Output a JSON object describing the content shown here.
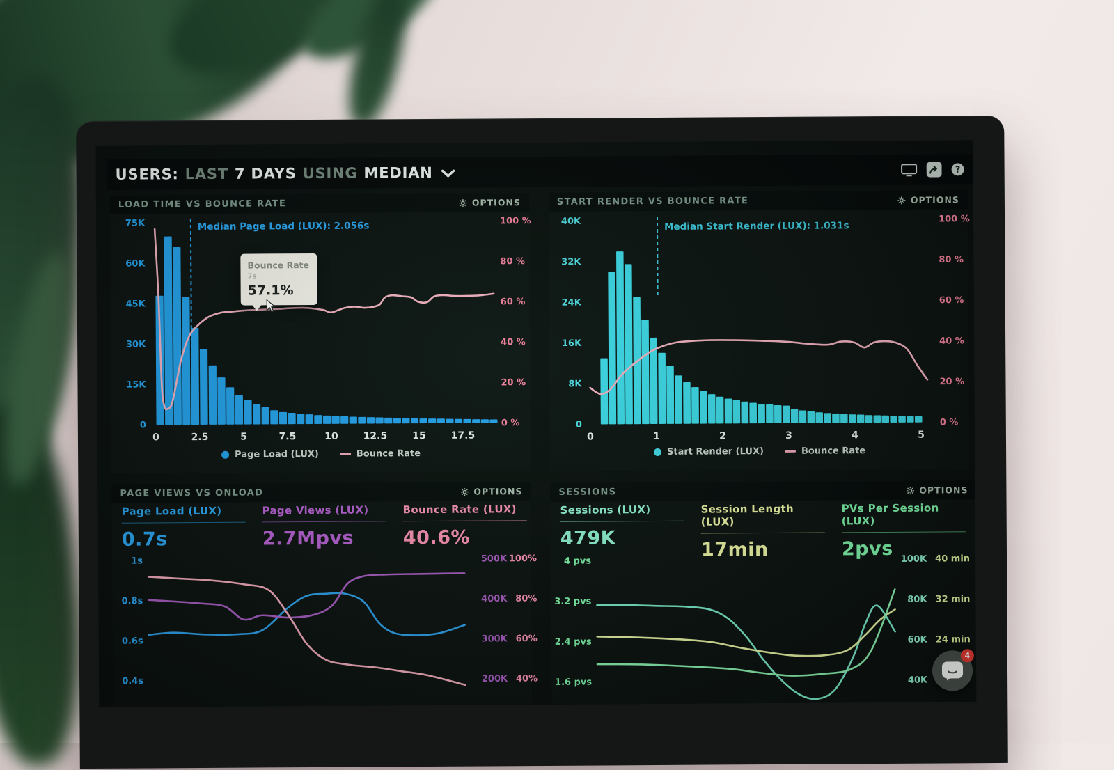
{
  "window": {
    "header_title_parts": [
      {
        "text": "USERS:",
        "dim": false
      },
      {
        "text": "LAST",
        "dim": true
      },
      {
        "text": "7 DAYS",
        "dim": false
      },
      {
        "text": "USING",
        "dim": true
      },
      {
        "text": "MEDIAN",
        "dim": false
      }
    ],
    "toolbar_icons": [
      "display-icon",
      "share-icon",
      "help-icon"
    ]
  },
  "chat_widget": {
    "badge_count": "4"
  },
  "panels": [
    {
      "title": "LOAD TIME VS BOUNCE RATE",
      "options_label": "OPTIONS",
      "legend": [
        {
          "marker": "dot",
          "color": "#249fe8",
          "label": "Page Load (LUX)"
        },
        {
          "marker": "line",
          "color": "#f0a6b8",
          "label": "Bounce Rate"
        }
      ]
    },
    {
      "title": "START RENDER VS BOUNCE RATE",
      "options_label": "OPTIONS",
      "legend": [
        {
          "marker": "dot",
          "color": "#41d6e3",
          "label": "Start Render (LUX)"
        },
        {
          "marker": "line",
          "color": "#f0a6b8",
          "label": "Bounce Rate"
        }
      ]
    },
    {
      "title": "PAGE VIEWS VS ONLOAD",
      "options_label": "OPTIONS",
      "metrics": [
        {
          "label": "Page Load (LUX)",
          "value": "0.7s",
          "color": "#2ba4ef"
        },
        {
          "label": "Page Views (LUX)",
          "value": "2.7Mpvs",
          "color": "#b55fd0"
        },
        {
          "label": "Bounce Rate (LUX)",
          "value": "40.6%",
          "color": "#f78fb0"
        }
      ]
    },
    {
      "title": "SESSIONS",
      "options_label": "OPTIONS",
      "metrics": [
        {
          "label": "Sessions (LUX)",
          "value": "479K",
          "color": "#8fefd0"
        },
        {
          "label": "Session Length (LUX)",
          "value": "17min",
          "color": "#edf4a4"
        },
        {
          "label": "PVs Per Session (LUX)",
          "value": "2pvs",
          "color": "#7ef2a8"
        }
      ]
    }
  ],
  "chart_data": [
    {
      "type": "bar",
      "title": "LOAD TIME VS BOUNCE RATE",
      "x_unit": "seconds",
      "x_ticks": [
        "0",
        "2.5",
        "5",
        "7.5",
        "10",
        "12.5",
        "15",
        "17.5"
      ],
      "x_tick_values": [
        0,
        2.5,
        5,
        7.5,
        10,
        12.5,
        15,
        17.5
      ],
      "x_max": 19.6,
      "left_axis": {
        "labels": [
          "75K",
          "60K",
          "45K",
          "30K",
          "15K",
          "0"
        ],
        "values": [
          75,
          60,
          45,
          30,
          15,
          0
        ],
        "max": 75,
        "color": "#249fe8"
      },
      "right_axis": {
        "labels": [
          "100 %",
          "80 %",
          "60 %",
          "40 %",
          "20 %",
          "0 %"
        ],
        "values": [
          100,
          80,
          60,
          40,
          20,
          0
        ],
        "max": 100,
        "color": "#f27f9b"
      },
      "bar_series": {
        "name": "Page Load (LUX)",
        "color": "#249fe8",
        "bar_start": 0,
        "bar_width": 0.5,
        "values_k": [
          48,
          70,
          66,
          47.5,
          36,
          28,
          22,
          17.5,
          13.8,
          10.8,
          9.1,
          7.5,
          6.3,
          5.2,
          4.5,
          4.2,
          3.9,
          3.6,
          3.3,
          3.1,
          2.9,
          2.8,
          2.6,
          2.5,
          2.4,
          2.3,
          2.2,
          2.1,
          2.0,
          1.9,
          1.8,
          1.75,
          1.7,
          1.6,
          1.55,
          1.5,
          1.4,
          1.35,
          1.3
        ]
      },
      "line_series": {
        "name": "Bounce Rate",
        "color": "#f2afbe",
        "points": [
          [
            0,
            97
          ],
          [
            0.2,
            62
          ],
          [
            0.35,
            20
          ],
          [
            0.5,
            9
          ],
          [
            0.7,
            8
          ],
          [
            0.9,
            10
          ],
          [
            1.1,
            17
          ],
          [
            1.4,
            30
          ],
          [
            1.7,
            39
          ],
          [
            2.0,
            45
          ],
          [
            2.4,
            49
          ],
          [
            2.8,
            52
          ],
          [
            3.2,
            54
          ],
          [
            3.8,
            55.5
          ],
          [
            4.5,
            56
          ],
          [
            5.2,
            56.5
          ],
          [
            6.0,
            56.8
          ],
          [
            7.0,
            57.1
          ],
          [
            7.6,
            57.4
          ],
          [
            8.4,
            57.6
          ],
          [
            9.0,
            57.2
          ],
          [
            9.6,
            56.4
          ],
          [
            10.0,
            55.2
          ],
          [
            10.4,
            56.2
          ],
          [
            10.8,
            57.4
          ],
          [
            11.4,
            58
          ],
          [
            11.9,
            57.4
          ],
          [
            12.4,
            57.8
          ],
          [
            12.8,
            59
          ],
          [
            13.1,
            62.5
          ],
          [
            13.5,
            63.5
          ],
          [
            14.1,
            63
          ],
          [
            14.6,
            62.4
          ],
          [
            15.0,
            60.2
          ],
          [
            15.5,
            60
          ],
          [
            15.9,
            62.8
          ],
          [
            16.4,
            63.4
          ],
          [
            17.1,
            63
          ],
          [
            17.8,
            63
          ],
          [
            18.5,
            63.2
          ],
          [
            19.3,
            64
          ]
        ]
      },
      "median": {
        "x": 2.056,
        "label": "Median Page Load (LUX): 2.056s",
        "color": "#2ba4ef"
      },
      "tooltip": {
        "series": "Bounce Rate",
        "x_label": "7s",
        "value": "57.1%"
      }
    },
    {
      "type": "bar",
      "title": "START RENDER VS BOUNCE RATE",
      "x_unit": "seconds",
      "x_ticks": [
        "0",
        "1",
        "2",
        "3",
        "4",
        "5"
      ],
      "x_tick_values": [
        0,
        1,
        2,
        3,
        4,
        5
      ],
      "x_max": 5.2,
      "left_axis": {
        "labels": [
          "40K",
          "32K",
          "24K",
          "16K",
          "8K",
          "0"
        ],
        "values": [
          40,
          32,
          24,
          16,
          8,
          0
        ],
        "max": 40,
        "color": "#4fd8df"
      },
      "right_axis": {
        "labels": [
          "100 %",
          "80 %",
          "60 %",
          "40 %",
          "20 %",
          "0 %"
        ],
        "values": [
          100,
          80,
          60,
          40,
          20,
          0
        ],
        "max": 100,
        "color": "#f27f9b"
      },
      "bar_series": {
        "name": "Start Render (LUX)",
        "color": "#3cd6e4",
        "bar_start": 0.15,
        "bar_width": 0.125,
        "values_k": [
          13,
          30,
          34,
          31.5,
          25,
          20.5,
          17,
          14,
          11.5,
          9.5,
          8.2,
          7.2,
          6.4,
          5.8,
          5.3,
          4.9,
          4.6,
          4.3,
          4.05,
          3.85,
          3.7,
          3.55,
          3.45,
          2.8,
          2.5,
          2.3,
          2.1,
          1.95,
          1.85,
          1.75,
          1.65,
          1.6,
          1.5,
          1.45,
          1.4,
          1.35,
          1.3,
          1.25,
          1.2
        ]
      },
      "line_series": {
        "name": "Bounce Rate",
        "color": "#f2afbe",
        "points": [
          [
            0,
            18
          ],
          [
            0.15,
            15
          ],
          [
            0.3,
            17
          ],
          [
            0.5,
            25
          ],
          [
            0.8,
            33
          ],
          [
            1.0,
            37
          ],
          [
            1.3,
            40
          ],
          [
            1.7,
            41
          ],
          [
            2.2,
            41
          ],
          [
            2.7,
            40.5
          ],
          [
            3.0,
            40
          ],
          [
            3.3,
            39
          ],
          [
            3.6,
            38.5
          ],
          [
            3.8,
            40
          ],
          [
            4.0,
            39.5
          ],
          [
            4.15,
            37
          ],
          [
            4.3,
            39.5
          ],
          [
            4.5,
            40
          ],
          [
            4.65,
            39
          ],
          [
            4.8,
            36
          ],
          [
            4.95,
            28
          ],
          [
            5.1,
            21
          ]
        ]
      },
      "median": {
        "x": 1.031,
        "label": "Median Start Render (LUX): 1.031s",
        "color": "#3ec9de"
      }
    },
    {
      "type": "line",
      "title": "PAGE VIEWS VS ONLOAD",
      "left_axis": {
        "labels": [
          "1s",
          "0.8s",
          "0.6s",
          "0.4s"
        ],
        "color": "#2ba4ef"
      },
      "right_axes": [
        {
          "labels": [
            "500K",
            "400K",
            "300K",
            "200K"
          ],
          "color": "#a75cc0"
        },
        {
          "labels": [
            "100%",
            "80%",
            "60%",
            "40%"
          ],
          "color": "#f78fb0"
        }
      ],
      "series": [
        {
          "name": "Page Load (LUX)",
          "unit": "s",
          "color": "#2f9fe8",
          "row_top_value": 1.0,
          "row_step": 0.2,
          "points": [
            [
              0,
              0.63
            ],
            [
              0.08,
              0.64
            ],
            [
              0.18,
              0.63
            ],
            [
              0.28,
              0.63
            ],
            [
              0.36,
              0.65
            ],
            [
              0.44,
              0.76
            ],
            [
              0.5,
              0.82
            ],
            [
              0.56,
              0.83
            ],
            [
              0.62,
              0.83
            ],
            [
              0.68,
              0.79
            ],
            [
              0.73,
              0.68
            ],
            [
              0.78,
              0.63
            ],
            [
              0.85,
              0.62
            ],
            [
              0.92,
              0.63
            ],
            [
              1,
              0.67
            ]
          ]
        },
        {
          "name": "Page Views (LUX)",
          "unit": "K pvs",
          "color": "#a75cc0",
          "row_top_value": 500,
          "row_step": 100,
          "points": [
            [
              0,
              402
            ],
            [
              0.08,
              398
            ],
            [
              0.16,
              393
            ],
            [
              0.24,
              385
            ],
            [
              0.3,
              352
            ],
            [
              0.36,
              362
            ],
            [
              0.44,
              356
            ],
            [
              0.52,
              362
            ],
            [
              0.58,
              385
            ],
            [
              0.63,
              440
            ],
            [
              0.68,
              458
            ],
            [
              0.75,
              462
            ],
            [
              0.85,
              463
            ],
            [
              1,
              464
            ]
          ]
        },
        {
          "name": "Bounce Rate (LUX)",
          "unit": "%",
          "color": "#f2a9bb",
          "row_top_value": 100,
          "row_step": 20,
          "points": [
            [
              0,
              92
            ],
            [
              0.1,
              91
            ],
            [
              0.2,
              90
            ],
            [
              0.3,
              88
            ],
            [
              0.38,
              85
            ],
            [
              0.44,
              73
            ],
            [
              0.5,
              58
            ],
            [
              0.56,
              50
            ],
            [
              0.63,
              47.5
            ],
            [
              0.72,
              46
            ],
            [
              0.8,
              44
            ],
            [
              0.88,
              42
            ],
            [
              1,
              37
            ]
          ]
        }
      ]
    },
    {
      "type": "line",
      "title": "SESSIONS",
      "left_axis": {
        "labels": [
          "4 pvs",
          "3.2 pvs",
          "2.4 pvs",
          "1.6 pvs"
        ],
        "color": "#7ef2a8"
      },
      "right_axes": [
        {
          "labels": [
            "100K",
            "80K",
            "60K",
            "40K"
          ],
          "color": "#8fefd0"
        },
        {
          "labels": [
            "40 min",
            "32 min",
            "24 min"
          ],
          "color": "#dff29e"
        }
      ],
      "series": [
        {
          "name": "Sessions (LUX)",
          "unit": "K",
          "color": "#79e8c8",
          "row_top_value": 100,
          "row_step": 20,
          "points": [
            [
              0,
              78
            ],
            [
              0.1,
              78
            ],
            [
              0.2,
              77.5
            ],
            [
              0.3,
              77
            ],
            [
              0.38,
              75.5
            ],
            [
              0.44,
              71
            ],
            [
              0.5,
              62
            ],
            [
              0.56,
              50
            ],
            [
              0.62,
              40
            ],
            [
              0.68,
              33
            ],
            [
              0.74,
              31
            ],
            [
              0.8,
              36
            ],
            [
              0.86,
              52
            ],
            [
              0.9,
              68
            ],
            [
              0.94,
              77
            ],
            [
              1,
              64
            ]
          ]
        },
        {
          "name": "Session Length (LUX)",
          "unit": "min",
          "color": "#e6f2a2",
          "row_top_value": 40,
          "row_step": 8,
          "points": [
            [
              0,
              25
            ],
            [
              0.12,
              24.8
            ],
            [
              0.26,
              24.4
            ],
            [
              0.38,
              23.8
            ],
            [
              0.48,
              22.6
            ],
            [
              0.58,
              21.6
            ],
            [
              0.66,
              21
            ],
            [
              0.76,
              21
            ],
            [
              0.84,
              22
            ],
            [
              0.9,
              25
            ],
            [
              0.95,
              28
            ],
            [
              1,
              30
            ]
          ]
        },
        {
          "name": "PVs Per Session (LUX)",
          "unit": "pvs",
          "color": "#8af0ae",
          "row_top_value": 4,
          "row_step": 0.8,
          "points": [
            [
              0,
              1.95
            ],
            [
              0.15,
              1.94
            ],
            [
              0.3,
              1.9
            ],
            [
              0.45,
              1.84
            ],
            [
              0.55,
              1.76
            ],
            [
              0.65,
              1.7
            ],
            [
              0.75,
              1.73
            ],
            [
              0.85,
              1.82
            ],
            [
              0.92,
              2.2
            ],
            [
              1,
              3.4
            ]
          ]
        }
      ]
    }
  ]
}
